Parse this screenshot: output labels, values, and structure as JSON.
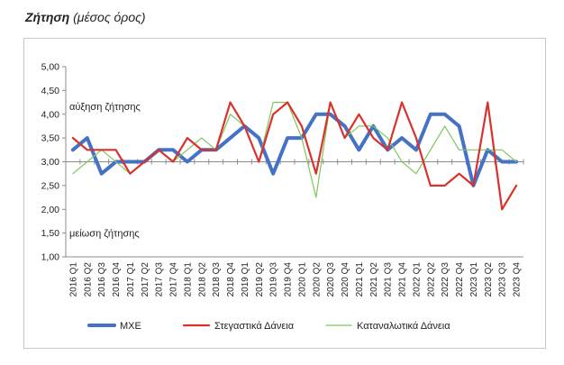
{
  "header": {
    "title": "Ζήτηση",
    "subtitle": "(μέσος όρος)"
  },
  "annotations": {
    "up": "αύξηση ζήτησης",
    "down": "μείωση ζήτησης"
  },
  "chart_data": {
    "type": "line",
    "title": "Ζήτηση (μέσος όρος)",
    "xlabel": "",
    "ylabel": "",
    "ylim": [
      1.0,
      5.0
    ],
    "yticks": [
      "1,00",
      "1,50",
      "2,00",
      "2,50",
      "3,00",
      "3,50",
      "4,00",
      "4,50",
      "5,00"
    ],
    "grid": false,
    "legend": "bottom",
    "reference_line": 3.0,
    "categories": [
      "2016 Q1",
      "2016 Q2",
      "2016 Q3",
      "2016 Q4",
      "2017 Q1",
      "2017 Q2",
      "2017 Q3",
      "2017 Q4",
      "2018 Q1",
      "2018 Q2",
      "2018 Q3",
      "2018 Q4",
      "2019 Q1",
      "2019 Q2",
      "2019 Q3",
      "2019 Q4",
      "2020 Q1",
      "2020 Q2",
      "2020 Q3",
      "2020 Q4",
      "2021 Q1",
      "2021 Q2",
      "2021 Q3",
      "2021 Q4",
      "2022 Q1",
      "2022 Q2",
      "2022 Q3",
      "2022 Q4",
      "2023 Q1",
      "2023 Q2",
      "2023 Q3",
      "2023 Q4"
    ],
    "series": [
      {
        "name": "ΜΧΕ",
        "color": "#4472c4",
        "values": [
          3.25,
          3.5,
          2.75,
          3.0,
          3.0,
          3.0,
          3.25,
          3.25,
          3.0,
          3.25,
          3.25,
          3.5,
          3.75,
          3.5,
          2.75,
          3.5,
          3.5,
          4.0,
          4.0,
          3.75,
          3.25,
          3.75,
          3.25,
          3.5,
          3.25,
          4.0,
          4.0,
          3.75,
          2.5,
          3.25,
          3.0,
          3.0
        ]
      },
      {
        "name": "Στεγαστικά Δάνεια",
        "color": "#d9312b",
        "values": [
          3.5,
          3.25,
          3.25,
          3.25,
          2.75,
          3.0,
          3.25,
          3.0,
          3.5,
          3.25,
          3.25,
          4.25,
          3.75,
          3.0,
          4.0,
          4.25,
          3.75,
          2.75,
          4.25,
          3.5,
          4.0,
          3.5,
          3.25,
          4.25,
          3.5,
          2.5,
          2.5,
          2.75,
          2.5,
          4.25,
          2.0,
          2.5
        ]
      },
      {
        "name": "Καταναλωτικά Δάνεια",
        "color": "#7fc65a",
        "values": [
          2.75,
          3.0,
          3.25,
          3.0,
          2.75,
          3.0,
          3.25,
          3.0,
          3.25,
          3.5,
          3.25,
          4.0,
          3.75,
          3.0,
          4.25,
          4.25,
          3.5,
          2.25,
          4.25,
          3.5,
          3.75,
          3.75,
          3.5,
          3.0,
          2.75,
          3.25,
          3.75,
          3.25,
          3.25,
          3.25,
          3.25,
          3.0
        ]
      }
    ]
  }
}
